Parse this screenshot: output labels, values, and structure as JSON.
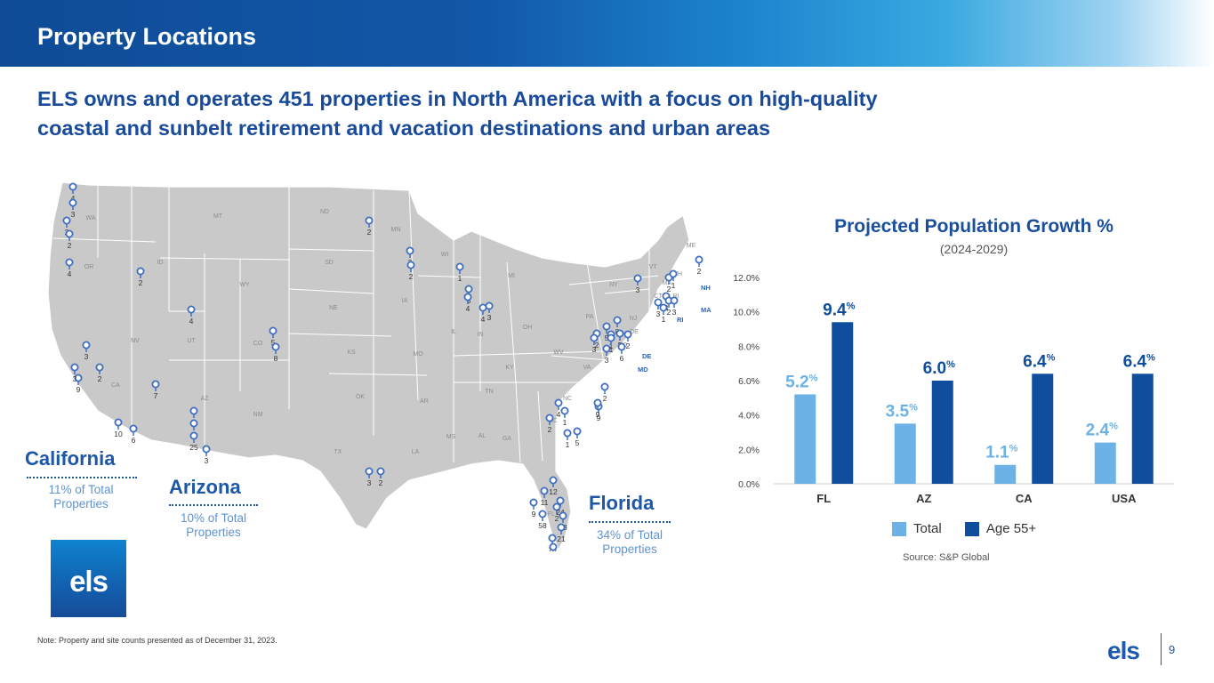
{
  "header": {
    "title": "Property Locations",
    "subtitle": "ELS owns and operates 451 properties in North America with a focus on high-quality coastal and sunbelt retirement and vacation destinations and urban areas"
  },
  "map": {
    "highlights": [
      {
        "name": "California",
        "share": "11% of Total Properties"
      },
      {
        "name": "Arizona",
        "share": "10% of Total Properties"
      },
      {
        "name": "Florida",
        "share": "34% of Total Properties"
      }
    ],
    "state_abbrevs": [
      "WA",
      "OR",
      "ID",
      "MT",
      "WY",
      "NV",
      "UT",
      "CA",
      "AZ",
      "CO",
      "NM",
      "ND",
      "SD",
      "NE",
      "KS",
      "OK",
      "TX",
      "MN",
      "IA",
      "MO",
      "AR",
      "LA",
      "WI",
      "IL",
      "MI",
      "IN",
      "OH",
      "KY",
      "TN",
      "MS",
      "AL",
      "GA",
      "FL",
      "SC",
      "NC",
      "VA",
      "WV",
      "PA",
      "NY",
      "VT",
      "NH",
      "ME",
      "MA",
      "RI",
      "CT",
      "NJ",
      "DE",
      "MD"
    ],
    "callout_states": [
      "NH",
      "MA",
      "RI",
      "DE",
      "MD"
    ],
    "pin_counts": [
      "4",
      "3",
      "2",
      "2",
      "4",
      "2",
      "4",
      "2",
      "3",
      "1",
      "3",
      "4",
      "9",
      "3",
      "7",
      "3",
      "2",
      "10",
      "6",
      "8",
      "3",
      "25",
      "3",
      "5",
      "8",
      "3",
      "2",
      "4",
      "3",
      "2",
      "1",
      "4",
      "2",
      "2",
      "3",
      "1",
      "3",
      "8",
      "5",
      "2",
      "1",
      "2",
      "6",
      "9",
      "3",
      "2",
      "1",
      "3",
      "3",
      "2",
      "1",
      "3",
      "2",
      "5",
      "1",
      "2",
      "9",
      "2",
      "12",
      "11",
      "24",
      "58",
      "13",
      "21",
      "16",
      "9",
      "2"
    ],
    "color_pin": "#3f6ec0",
    "color_land": "#c9c9c9"
  },
  "logo": {
    "text": "els"
  },
  "note": "Note: Property and site counts presented as of December 31, 2023.",
  "chart_data": {
    "type": "bar",
    "title": "Projected Population Growth %",
    "subtitle": "(2024-2029)",
    "categories": [
      "FL",
      "AZ",
      "CA",
      "USA"
    ],
    "series": [
      {
        "name": "Total",
        "values": [
          5.2,
          3.5,
          1.1,
          2.4
        ],
        "color": "#6cb2e6"
      },
      {
        "name": "Age 55+",
        "values": [
          9.4,
          6.0,
          6.4,
          6.4
        ],
        "color": "#0f4e9d"
      }
    ],
    "value_labels": {
      "Total": [
        "5.2",
        "3.5",
        "1.1",
        "2.4"
      ],
      "Age 55+": [
        "9.4",
        "6.0",
        "6.4",
        "6.4"
      ]
    },
    "value_suffix": "%",
    "ylim": [
      0,
      12
    ],
    "y_ticks": [
      "0.0%",
      "2.0%",
      "4.0%",
      "6.0%",
      "8.0%",
      "10.0%",
      "12.0%"
    ],
    "y_tick_values": [
      0,
      2,
      4,
      6,
      8,
      10,
      12
    ],
    "grid": false,
    "legend_position": "bottom",
    "source": "Source: S&P Global"
  },
  "footer": {
    "logo": "els",
    "page_number": "9"
  }
}
